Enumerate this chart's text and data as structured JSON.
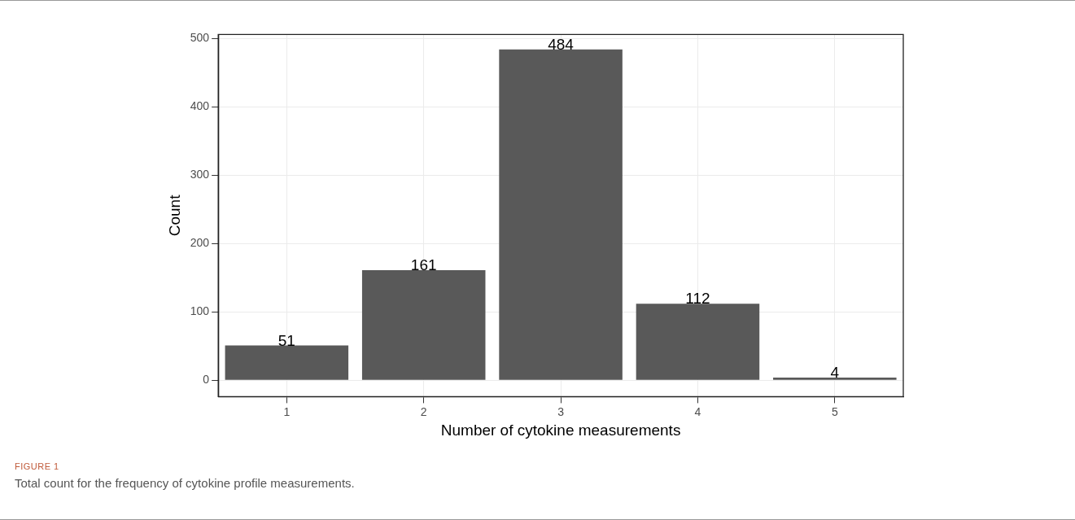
{
  "chart_data": {
    "type": "bar",
    "categories": [
      "1",
      "2",
      "3",
      "4",
      "5"
    ],
    "values": [
      51,
      161,
      484,
      112,
      4
    ],
    "color": "#595959",
    "xlabel": "Number of cytokine measurements",
    "ylabel": "Count",
    "ylim": [
      -24,
      506
    ],
    "yticks": [
      0,
      100,
      200,
      300,
      400,
      500
    ],
    "grid": true,
    "data_labels": true,
    "annotations": [
      "FIGURE 1",
      "Total count for the frequency of cytokine profile measurements."
    ]
  }
}
